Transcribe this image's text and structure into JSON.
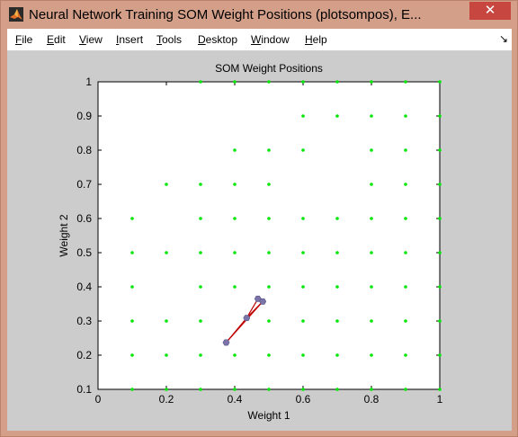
{
  "window": {
    "title": "Neural Network Training SOM Weight Positions (plotsompos), E...",
    "minimize_symbol": "—",
    "maximize_symbol": "❐",
    "close_symbol": "✕",
    "dock_symbol": "↘"
  },
  "menu": {
    "items": [
      "File",
      "Edit",
      "View",
      "Insert",
      "Tools",
      "Desktop",
      "Window",
      "Help"
    ]
  },
  "colors": {
    "neuron_point": "#00e600",
    "weight_line": "#c00000",
    "weight_marker": "#7a74a8",
    "axes_background": "#ffffff",
    "figure_background": "#cccccc"
  },
  "chart_data": {
    "type": "scatter",
    "title": "SOM Weight Positions",
    "xlabel": "Weight 1",
    "ylabel": "Weight 2",
    "xlim": [
      0,
      1
    ],
    "ylim": [
      0.1,
      1
    ],
    "xticks": [
      "0",
      "0.2",
      "0.4",
      "0.6",
      "0.8",
      "1"
    ],
    "yticks": [
      "0.1",
      "0.2",
      "0.3",
      "0.4",
      "0.5",
      "0.6",
      "0.7",
      "0.8",
      "0.9",
      "1"
    ],
    "grid": false,
    "series": [
      {
        "marker": "dot",
        "points": [
          [
            0.1,
            0.1
          ],
          [
            0.1,
            0.2
          ],
          [
            0.1,
            0.3
          ],
          [
            0.1,
            0.4
          ],
          [
            0.1,
            0.5
          ],
          [
            0.1,
            0.6
          ],
          [
            0.2,
            0.1
          ],
          [
            0.2,
            0.2
          ],
          [
            0.2,
            0.3
          ],
          [
            0.2,
            0.5
          ],
          [
            0.2,
            0.7
          ],
          [
            0.3,
            0.1
          ],
          [
            0.3,
            0.2
          ],
          [
            0.3,
            0.3
          ],
          [
            0.3,
            0.4
          ],
          [
            0.3,
            0.5
          ],
          [
            0.3,
            0.6
          ],
          [
            0.3,
            0.7
          ],
          [
            0.3,
            1.0
          ],
          [
            0.4,
            0.1
          ],
          [
            0.4,
            0.2
          ],
          [
            0.4,
            0.4
          ],
          [
            0.4,
            0.5
          ],
          [
            0.4,
            0.6
          ],
          [
            0.4,
            0.7
          ],
          [
            0.4,
            0.8
          ],
          [
            0.4,
            1.0
          ],
          [
            0.5,
            0.1
          ],
          [
            0.5,
            0.2
          ],
          [
            0.5,
            0.3
          ],
          [
            0.5,
            0.4
          ],
          [
            0.5,
            0.5
          ],
          [
            0.5,
            0.6
          ],
          [
            0.5,
            0.7
          ],
          [
            0.5,
            0.8
          ],
          [
            0.5,
            1.0
          ],
          [
            0.6,
            0.1
          ],
          [
            0.6,
            0.2
          ],
          [
            0.6,
            0.3
          ],
          [
            0.6,
            0.4
          ],
          [
            0.6,
            0.5
          ],
          [
            0.6,
            0.6
          ],
          [
            0.6,
            0.8
          ],
          [
            0.6,
            0.9
          ],
          [
            0.6,
            1.0
          ],
          [
            0.7,
            0.1
          ],
          [
            0.7,
            0.2
          ],
          [
            0.7,
            0.3
          ],
          [
            0.7,
            0.4
          ],
          [
            0.7,
            0.5
          ],
          [
            0.7,
            0.6
          ],
          [
            0.7,
            0.9
          ],
          [
            0.7,
            1.0
          ],
          [
            0.8,
            0.1
          ],
          [
            0.8,
            0.2
          ],
          [
            0.8,
            0.3
          ],
          [
            0.8,
            0.4
          ],
          [
            0.8,
            0.5
          ],
          [
            0.8,
            0.6
          ],
          [
            0.8,
            0.7
          ],
          [
            0.8,
            0.8
          ],
          [
            0.8,
            0.9
          ],
          [
            0.8,
            1.0
          ],
          [
            0.9,
            0.1
          ],
          [
            0.9,
            0.2
          ],
          [
            0.9,
            0.3
          ],
          [
            0.9,
            0.4
          ],
          [
            0.9,
            0.5
          ],
          [
            0.9,
            0.6
          ],
          [
            0.9,
            0.7
          ],
          [
            0.9,
            0.8
          ],
          [
            0.9,
            0.9
          ],
          [
            0.9,
            1.0
          ],
          [
            1.0,
            0.1
          ],
          [
            1.0,
            0.2
          ],
          [
            1.0,
            0.3
          ],
          [
            1.0,
            0.4
          ],
          [
            1.0,
            0.5
          ],
          [
            1.0,
            0.6
          ],
          [
            1.0,
            0.7
          ],
          [
            1.0,
            0.8
          ],
          [
            1.0,
            0.9
          ],
          [
            1.0,
            1.0
          ]
        ]
      },
      {
        "marker": "hexagon",
        "points": [
          [
            0.375,
            0.237
          ],
          [
            0.435,
            0.309
          ],
          [
            0.468,
            0.365
          ],
          [
            0.482,
            0.357
          ]
        ],
        "edges": [
          [
            0,
            1
          ],
          [
            1,
            2
          ],
          [
            0,
            3
          ],
          [
            1,
            3
          ],
          [
            2,
            3
          ]
        ]
      }
    ]
  }
}
